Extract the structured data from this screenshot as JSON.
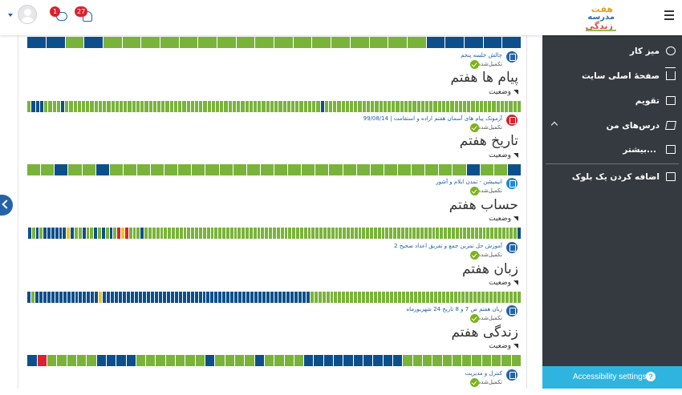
{
  "header": {
    "logo_lines": [
      "هفت",
      "مدرسه",
      "زندگی"
    ],
    "message_count": "1",
    "notification_count": "27"
  },
  "nav": {
    "items": [
      {
        "label": "میز کار",
        "icon": "gauge-icon"
      },
      {
        "label": "صفحهٔ اصلی سایت",
        "icon": "home-icon"
      },
      {
        "label": "تقویم",
        "icon": "calendar-icon"
      },
      {
        "label": "درس‌های من",
        "icon": "graduation-cap-icon"
      },
      {
        "label": "بیشتر...",
        "icon": "folder-icon"
      },
      {
        "label": "اضافه کردن یک بلوک",
        "icon": "folder-icon"
      }
    ],
    "accessibility_label": "Accessibility settings"
  },
  "colors": {
    "green": "#7ab33a",
    "blue": "#0d4f8b",
    "yellow": "#f3c318",
    "red": "#d9232e"
  },
  "sections": [
    {
      "title": "",
      "status_label": "",
      "progress": "BBBBBGGGGGGGGGGGGGGGGGBGBB",
      "activity": {
        "name": "چالش جلسه پنجم",
        "status": "تکمیل‌شده",
        "icon": "document-icon"
      }
    },
    {
      "title": "پیام ها هفتم",
      "status_label": "وضعیت",
      "progress": "GGGGGGGGGGGGGGGGGGGGGGGGGGGGGGGGGGGGGGGGGGGGGGGBGGGGGGGGGGGGGGGGGGGGGGGGGGGGGGGGGGGGGGGGGGGGGGGGGGGGGGGGGGGGGBGGGGBBBG",
      "activity": {
        "name": "آزمونک پیام های آسمان هفتم اراده و استقامت | 99/08/14",
        "status": "تکمیل‌شده",
        "icon": "list-icon"
      }
    },
    {
      "title": "تاریخ هفتم",
      "status_label": "وضعیت",
      "progress": "BGGBGGGGGGGGGGGGGGGGGGGGGGGGGGBGGBGG",
      "activity": {
        "name": "انیمیشن - تمدن ایلام و آشور",
        "status": "تکمیل‌شده",
        "icon": "link-icon"
      }
    },
    {
      "title": "حساب هفتم",
      "status_label": "وضعیت",
      "progress": "BGGGGGGGGGGGGGGGGGGGGGGGGGGGGGGGGGGGGGGGGGGGGGGGGGGGGGGGGGGGGGGGGGGGGGGGGGGGGGGGGGGGGGGGGGGGGGGGGBGGGRYRGBGBGBGGBGGBYBBBBBBGBGB",
      "activity": {
        "name": "آموزش حل تمرین جمع و تفریق اعداد صحیح 2",
        "status": "تکمیل‌شده",
        "icon": "browser-icon"
      }
    },
    {
      "title": "زبان هفتم",
      "status_label": "وضعیت",
      "progress": "GGGGGGGGGGGGGGGGGGGGGGGGGGGGGGGGGGGGGGGGGGGGGGGGGGGGGBBBBBBBBBBBBBBBBBBBBBBBBBBBBBBBBBBBBBBBBBBBBBBBBBBBBYBBBBBBBBBBBBBBBBGB",
      "activity": {
        "name": "زبان هفتم ص 7 و 8  تاریخ 24 شهریورماه",
        "status": "تکمیل‌شده",
        "icon": "browser-icon"
      }
    },
    {
      "title": "زندگی هفتم",
      "status_label": "وضعیت",
      "progress": "GGGGGGGGGGGGBBBBBBBBBBGGGGBGGGGBGGGGGGGBBBBGGGGGRB",
      "activity": {
        "name": "کنترل و مدیریت",
        "status": "تکمیل‌شده",
        "icon": "document-icon"
      }
    }
  ]
}
